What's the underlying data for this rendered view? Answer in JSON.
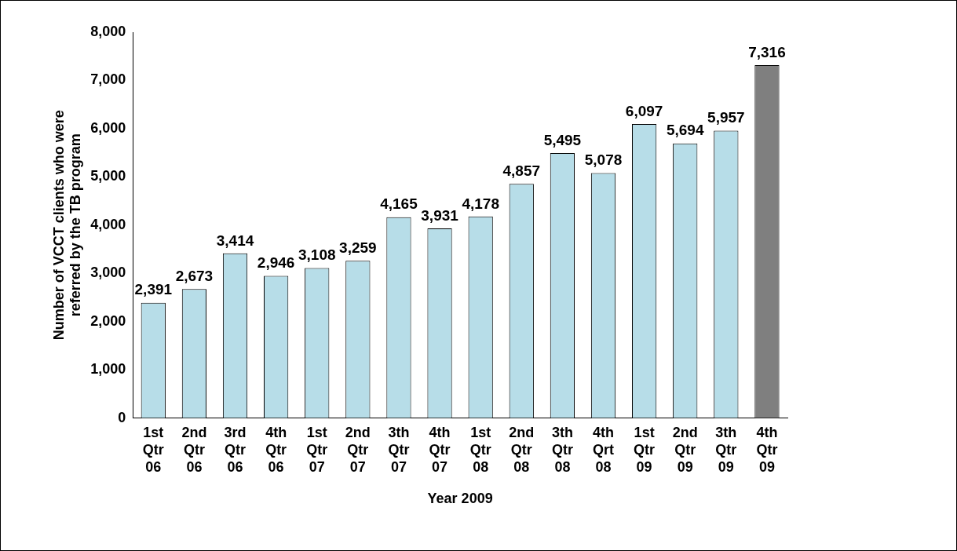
{
  "chart_data": {
    "type": "bar",
    "xlabel": "Year 2009",
    "ylabel": "Number of VCCT clients who were referred by the TB program",
    "categories": [
      "1st Qtr 06",
      "2nd Qtr 06",
      "3rd Qtr 06",
      "4th Qtr 06",
      "1st Qtr 07",
      "2nd Qtr 07",
      "3th Qtr 07",
      "4th Qtr 07",
      "1st Qtr 08",
      "2nd Qtr 08",
      "3th Qtr 08",
      "4th Qrt 08",
      "1st Qtr 09",
      "2nd Qtr 09",
      "3th Qtr 09",
      "4th Qtr 09"
    ],
    "values": [
      2391,
      2673,
      3414,
      2946,
      3108,
      3259,
      4165,
      3931,
      4178,
      4857,
      5495,
      5078,
      6097,
      5694,
      5957,
      7316
    ],
    "value_labels": [
      "2,391",
      "2,673",
      "3,414",
      "2,946",
      "3,108",
      "3,259",
      "4,165",
      "3,931",
      "4,178",
      "4,857",
      "5,495",
      "5,078",
      "6,097",
      "5,694",
      "5,957",
      "7,316"
    ],
    "colors": [
      "#b7dde8",
      "#b7dde8",
      "#b7dde8",
      "#b7dde8",
      "#b7dde8",
      "#b7dde8",
      "#b7dde8",
      "#b7dde8",
      "#b7dde8",
      "#b7dde8",
      "#b7dde8",
      "#b7dde8",
      "#b7dde8",
      "#b7dde8",
      "#b7dde8",
      "#7f7f7f"
    ],
    "ylim": [
      0,
      8000
    ],
    "yticks": [
      0,
      {
        "value": 1000,
        "label": "1,000"
      },
      {
        "value": 2000,
        "label": "2,000"
      },
      {
        "value": 3000,
        "label": "3,000"
      },
      {
        "value": 4000,
        "label": "4,000"
      },
      {
        "value": 5000,
        "label": "5,000"
      },
      {
        "value": 6000,
        "label": "6,000"
      },
      {
        "value": 7000,
        "label": "7,000"
      },
      {
        "value": 8000,
        "label": "8,000"
      }
    ],
    "grid": false,
    "legend": false
  }
}
